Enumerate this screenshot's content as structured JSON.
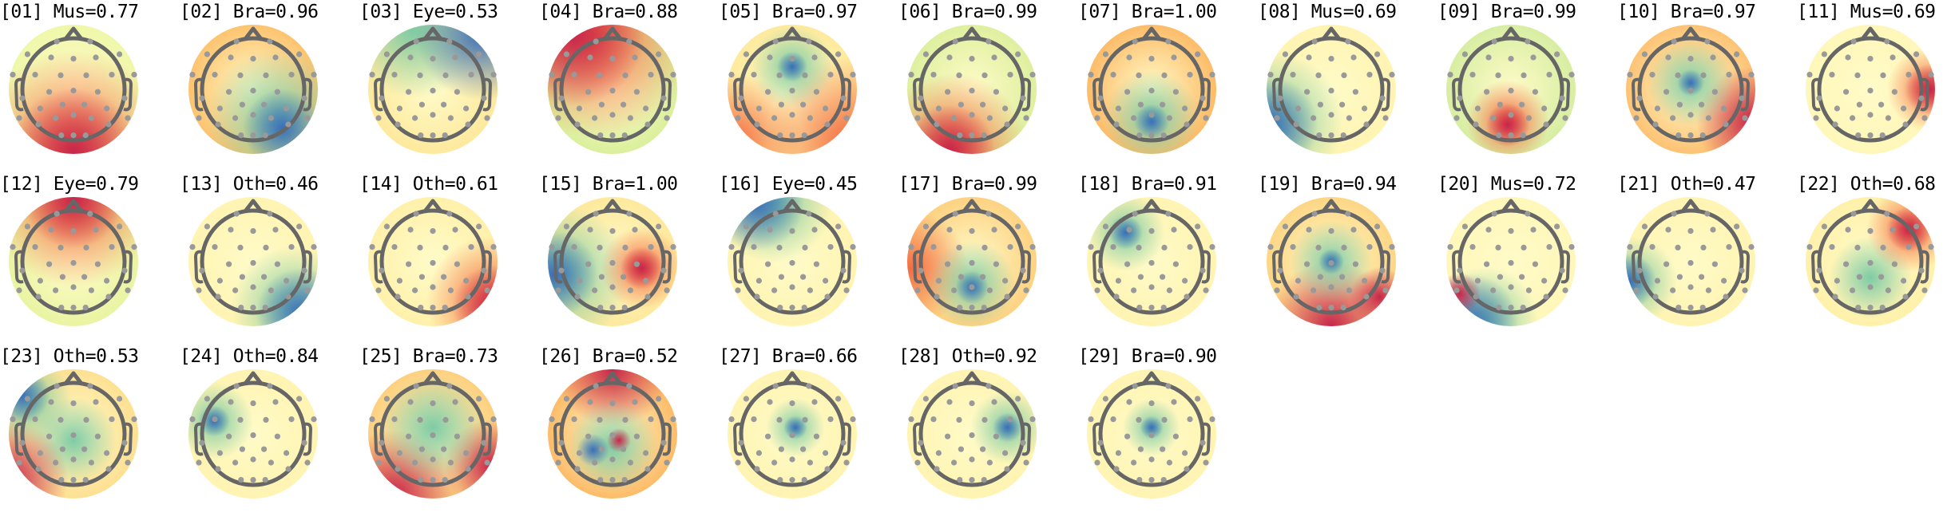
{
  "components": [
    {
      "label": "[01] Mus=0.77",
      "index": "01",
      "class": "Mus",
      "score": 0.77,
      "base_color": "#eef7a8"
    },
    {
      "label": "[02] Bra=0.96",
      "index": "02",
      "class": "Bra",
      "score": 0.96,
      "base_color": "#fdc06a"
    },
    {
      "label": "[03] Eye=0.53",
      "index": "03",
      "class": "Eye",
      "score": 0.53,
      "base_color": "#fee89a"
    },
    {
      "label": "[04] Bra=0.88",
      "index": "04",
      "class": "Bra",
      "score": 0.88,
      "base_color": "#d8ef9a"
    },
    {
      "label": "[05] Bra=0.97",
      "index": "05",
      "class": "Bra",
      "score": 0.97,
      "base_color": "#fee99a"
    },
    {
      "label": "[06] Bra=0.99",
      "index": "06",
      "class": "Bra",
      "score": 0.99,
      "base_color": "#dcef9c"
    },
    {
      "label": "[07] Bra=1.00",
      "index": "07",
      "class": "Bra",
      "score": 1.0,
      "base_color": "#fdb863"
    },
    {
      "label": "[08] Mus=0.69",
      "index": "08",
      "class": "Mus",
      "score": 0.69,
      "base_color": "#fff3b0"
    },
    {
      "label": "[09] Bra=0.99",
      "index": "09",
      "class": "Bra",
      "score": 0.99,
      "base_color": "#d5eda0"
    },
    {
      "label": "[10] Bra=0.97",
      "index": "10",
      "class": "Bra",
      "score": 0.97,
      "base_color": "#fdbf6f"
    },
    {
      "label": "[11] Mus=0.69",
      "index": "11",
      "class": "Mus",
      "score": 0.69,
      "base_color": "#fff7b8"
    },
    {
      "label": "[12] Eye=0.79",
      "index": "12",
      "class": "Eye",
      "score": 0.79,
      "base_color": "#e8f4a0"
    },
    {
      "label": "[13] Oth=0.46",
      "index": "13",
      "class": "Oth",
      "score": 0.46,
      "base_color": "#fff3b0"
    },
    {
      "label": "[14] Oth=0.61",
      "index": "14",
      "class": "Oth",
      "score": 0.61,
      "base_color": "#fff0a8"
    },
    {
      "label": "[15] Bra=1.00",
      "index": "15",
      "class": "Bra",
      "score": 1.0,
      "base_color": "#fee89a"
    },
    {
      "label": "[16] Eye=0.45",
      "index": "16",
      "class": "Eye",
      "score": 0.45,
      "base_color": "#fff3b0"
    },
    {
      "label": "[17] Bra=0.99",
      "index": "17",
      "class": "Bra",
      "score": 0.99,
      "base_color": "#fdcf7d"
    },
    {
      "label": "[18] Bra=0.91",
      "index": "18",
      "class": "Bra",
      "score": 0.91,
      "base_color": "#fff3b0"
    },
    {
      "label": "[19] Bra=0.94",
      "index": "19",
      "class": "Bra",
      "score": 0.94,
      "base_color": "#fdd380"
    },
    {
      "label": "[20] Mus=0.72",
      "index": "20",
      "class": "Mus",
      "score": 0.72,
      "base_color": "#fff7b8"
    },
    {
      "label": "[21] Oth=0.47",
      "index": "21",
      "class": "Oth",
      "score": 0.47,
      "base_color": "#fff3b0"
    },
    {
      "label": "[22] Oth=0.68",
      "index": "22",
      "class": "Oth",
      "score": 0.68,
      "base_color": "#fff0a8"
    },
    {
      "label": "[23] Oth=0.53",
      "index": "23",
      "class": "Oth",
      "score": 0.53,
      "base_color": "#fddf8f"
    },
    {
      "label": "[24] Oth=0.84",
      "index": "24",
      "class": "Oth",
      "score": 0.84,
      "base_color": "#fff3b0"
    },
    {
      "label": "[25] Bra=0.73",
      "index": "25",
      "class": "Bra",
      "score": 0.73,
      "base_color": "#fdcd7a"
    },
    {
      "label": "[26] Bra=0.52",
      "index": "26",
      "class": "Bra",
      "score": 0.52,
      "base_color": "#fdb863"
    },
    {
      "label": "[27] Bra=0.66",
      "index": "27",
      "class": "Bra",
      "score": 0.66,
      "base_color": "#fff3b0"
    },
    {
      "label": "[28] Oth=0.92",
      "index": "28",
      "class": "Oth",
      "score": 0.92,
      "base_color": "#fff3b0"
    },
    {
      "label": "[29] Bra=0.90",
      "index": "29",
      "class": "Bra",
      "score": 0.9,
      "base_color": "#fff3b0"
    }
  ],
  "colors": {
    "positive": "#b5174b",
    "negative": "#3a6fb8",
    "head_outline": "#666666",
    "electrode": "#999999"
  }
}
